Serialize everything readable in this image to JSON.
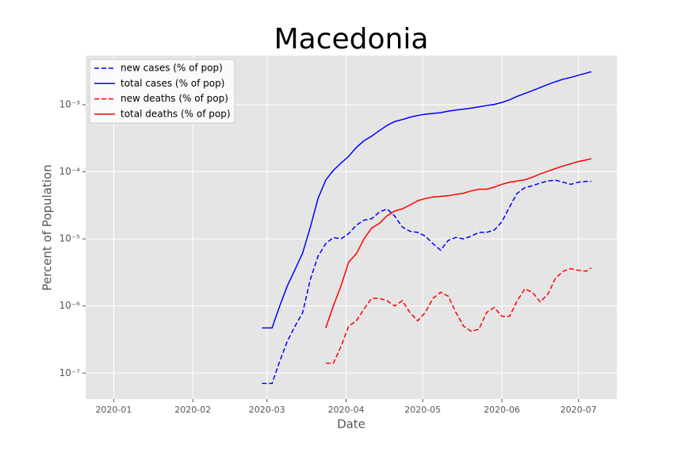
{
  "chart_data": {
    "type": "line",
    "title": "Macedonia",
    "x_label": "Date",
    "y_label": "Percent of Population",
    "log_y": true,
    "grid": true,
    "legend": "upper left",
    "x": [
      58,
      60,
      62,
      65,
      68,
      71,
      74,
      77,
      80,
      83,
      86,
      89,
      92,
      95,
      98,
      101,
      104,
      107,
      110,
      113,
      116,
      119,
      122,
      125,
      128,
      131,
      134,
      137,
      140,
      143,
      146,
      149,
      152,
      155,
      158,
      161,
      164,
      167,
      170,
      173,
      176,
      179,
      182,
      185,
      187
    ],
    "xlim": [
      -11,
      197
    ],
    "xticks": [
      {
        "value": 0,
        "label": "2020-01"
      },
      {
        "value": 31,
        "label": "2020-02"
      },
      {
        "value": 60,
        "label": "2020-03"
      },
      {
        "value": 91,
        "label": "2020-04"
      },
      {
        "value": 121,
        "label": "2020-05"
      },
      {
        "value": 152,
        "label": "2020-06"
      },
      {
        "value": 182,
        "label": "2020-07"
      }
    ],
    "ylim": [
      4.1e-08,
      0.0054
    ],
    "yticks": [
      {
        "value": 1e-07,
        "label": "10⁻⁷"
      },
      {
        "value": 1e-06,
        "label": "10⁻⁶"
      },
      {
        "value": 1e-05,
        "label": "10⁻⁵"
      },
      {
        "value": 0.0001,
        "label": "10⁻⁴"
      },
      {
        "value": 0.001,
        "label": "10⁻³"
      }
    ],
    "series": [
      {
        "name": "new cases (% of pop)",
        "color": "#0000ff",
        "linestyle": "dashed",
        "values": [
          7e-08,
          7e-08,
          7e-08,
          1.5e-07,
          3e-07,
          5e-07,
          8e-07,
          2.5e-06,
          5.5e-06,
          8.5e-06,
          1.05e-05,
          1e-05,
          1.2e-05,
          1.6e-05,
          1.9e-05,
          2e-05,
          2.5e-05,
          2.8e-05,
          2.2e-05,
          1.5e-05,
          1.3e-05,
          1.25e-05,
          1.1e-05,
          8.5e-06,
          6.8e-06,
          9.5e-06,
          1.05e-05,
          1e-05,
          1.1e-05,
          1.25e-05,
          1.25e-05,
          1.35e-05,
          1.8e-05,
          3e-05,
          4.8e-05,
          5.8e-05,
          6.2e-05,
          6.8e-05,
          7.3e-05,
          7.5e-05,
          7e-05,
          6.5e-05,
          7e-05,
          7.2e-05,
          7.2e-05
        ]
      },
      {
        "name": "total cases (% of pop)",
        "color": "#0000ff",
        "linestyle": "solid",
        "values": [
          4.7e-07,
          4.7e-07,
          4.7e-07,
          1e-06,
          2e-06,
          3.5e-06,
          6.2e-06,
          1.5e-05,
          4e-05,
          7.5e-05,
          0.000105,
          0.000135,
          0.00017,
          0.00023,
          0.00029,
          0.00034,
          0.00041,
          0.00049,
          0.00056,
          0.0006,
          0.00065,
          0.00069,
          0.00072,
          0.00074,
          0.00076,
          0.0008,
          0.00083,
          0.00086,
          0.00089,
          0.00093,
          0.00097,
          0.00101,
          0.00108,
          0.00118,
          0.00133,
          0.00147,
          0.00162,
          0.0018,
          0.002,
          0.0022,
          0.0024,
          0.00255,
          0.00275,
          0.00295,
          0.0031
        ]
      },
      {
        "name": "new deaths (% of pop)",
        "color": "#ff0000",
        "linestyle": "dashed",
        "values": [
          null,
          null,
          null,
          null,
          null,
          null,
          null,
          null,
          null,
          1.4e-07,
          1.4e-07,
          2.5e-07,
          5e-07,
          6e-07,
          9e-07,
          1.3e-06,
          1.3e-06,
          1.2e-06,
          1e-06,
          1.2e-06,
          8e-07,
          6e-07,
          8e-07,
          1.3e-06,
          1.6e-06,
          1.4e-06,
          8e-07,
          5e-07,
          4.2e-07,
          4.5e-07,
          8e-07,
          9.5e-07,
          7e-07,
          7e-07,
          1.2e-06,
          1.8e-06,
          1.6e-06,
          1.15e-06,
          1.5e-06,
          2.6e-06,
          3.3e-06,
          3.6e-06,
          3.4e-06,
          3.3e-06,
          3.7e-06
        ]
      },
      {
        "name": "total deaths (% of pop)",
        "color": "#ff0000",
        "linestyle": "solid",
        "values": [
          null,
          null,
          null,
          null,
          null,
          null,
          null,
          null,
          null,
          4.7e-07,
          1e-06,
          2e-06,
          4.5e-06,
          6e-06,
          1e-05,
          1.45e-05,
          1.7e-05,
          2.2e-05,
          2.6e-05,
          2.8e-05,
          3.2e-05,
          3.7e-05,
          4e-05,
          4.2e-05,
          4.3e-05,
          4.4e-05,
          4.6e-05,
          4.8e-05,
          5.2e-05,
          5.5e-05,
          5.5e-05,
          5.9e-05,
          6.5e-05,
          7e-05,
          7.3e-05,
          7.6e-05,
          8.3e-05,
          9.3e-05,
          0.000102,
          0.000112,
          0.000122,
          0.000132,
          0.000142,
          0.00015,
          0.000157
        ]
      }
    ]
  }
}
